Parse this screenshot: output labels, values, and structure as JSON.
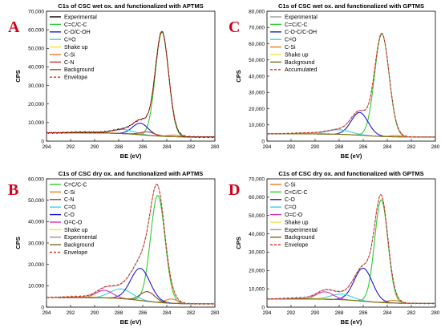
{
  "chart_data": [
    {
      "panel_letter": "A",
      "type": "line",
      "title": "C1s of CSC wet ox. and functionalized with APTMS",
      "xlabel": "BE (eV)",
      "ylabel": "CPS",
      "xlim": [
        294,
        280
      ],
      "xreverse": true,
      "ylim": [
        0,
        70000
      ],
      "xticks": [
        294,
        292,
        290,
        288,
        286,
        284,
        282,
        280
      ],
      "yticks": [
        0,
        10000,
        20000,
        30000,
        40000,
        50000,
        60000,
        70000
      ],
      "ytick_labels": [
        "0",
        "10,000",
        "20,000",
        "30,000",
        "40,000",
        "50,000",
        "60,000",
        "70,000"
      ],
      "legend_position": "top-left",
      "background": {
        "start": 4500,
        "end": 2200
      },
      "peaks": [
        {
          "name": "C=C/C-C",
          "center": 284.4,
          "height": 56000,
          "width": 0.55,
          "color": "#2ecc2e"
        },
        {
          "name": "C-O/C-OH",
          "center": 286.2,
          "height": 6200,
          "width": 0.65,
          "color": "#1a1ad6"
        },
        {
          "name": "C=O",
          "center": 287.6,
          "height": 2200,
          "width": 0.9,
          "color": "#2fd4e8"
        },
        {
          "name": "Shake up",
          "center": 290.8,
          "height": 400,
          "width": 1.2,
          "color": "#f2e23a"
        },
        {
          "name": "C-Si",
          "center": 283.4,
          "height": 900,
          "width": 0.5,
          "color": "#e87d1e"
        },
        {
          "name": "C-N",
          "center": 285.6,
          "height": 1800,
          "width": 0.6,
          "color": "#c0392b"
        }
      ],
      "legend": [
        {
          "label": "Experimental",
          "color": "#000000",
          "dash": false
        },
        {
          "label": "C=C/C-C",
          "color": "#2ecc2e",
          "dash": false
        },
        {
          "label": "C-O/C-OH",
          "color": "#1a1ad6",
          "dash": false
        },
        {
          "label": "C=O",
          "color": "#2fd4e8",
          "dash": false
        },
        {
          "label": "Shake up",
          "color": "#f2e23a",
          "dash": false
        },
        {
          "label": "C-Si",
          "color": "#e87d1e",
          "dash": false
        },
        {
          "label": "C-N",
          "color": "#c0392b",
          "dash": false
        },
        {
          "label": "Background",
          "color": "#7a6a1e",
          "dash": false
        },
        {
          "label": "Envelope",
          "color": "#e8231e",
          "dash": true
        }
      ]
    },
    {
      "panel_letter": "C",
      "type": "line",
      "title": "C1s of CSC wet ox. and functionalized with GPTMS",
      "xlabel": "BE (eV)",
      "ylabel": "CPS",
      "xlim": [
        294,
        280
      ],
      "xreverse": true,
      "ylim": [
        0,
        80000
      ],
      "xticks": [
        294,
        292,
        290,
        288,
        286,
        284,
        282,
        280
      ],
      "yticks": [
        0,
        10000,
        20000,
        30000,
        40000,
        50000,
        60000,
        70000,
        80000
      ],
      "ytick_labels": [
        "0",
        "10,000",
        "20,000",
        "30,000",
        "40,000",
        "50,000",
        "60,000",
        "70,000",
        "80,000"
      ],
      "legend_position": "top-left",
      "background": {
        "start": 4500,
        "end": 2500
      },
      "peaks": [
        {
          "name": "C=C/C-C",
          "center": 284.45,
          "height": 63000,
          "width": 0.6,
          "color": "#2ecc2e"
        },
        {
          "name": "C-O-C/C-OH",
          "center": 286.3,
          "height": 14000,
          "width": 0.7,
          "color": "#1a1ad6"
        },
        {
          "name": "C=O",
          "center": 288.0,
          "height": 2800,
          "width": 1.0,
          "color": "#2fd4e8"
        },
        {
          "name": "C-Si",
          "center": 283.3,
          "height": 800,
          "width": 0.5,
          "color": "#e87d1e"
        },
        {
          "name": "Shake up",
          "center": 290.6,
          "height": 600,
          "width": 1.2,
          "color": "#f2e23a"
        }
      ],
      "legend": [
        {
          "label": "Experimental",
          "color": "#9a9a9a",
          "dash": false
        },
        {
          "label": "C=C/C-C",
          "color": "#2ecc2e",
          "dash": false
        },
        {
          "label": "C-O-C/C-OH",
          "color": "#1a1ad6",
          "dash": false
        },
        {
          "label": "C=O",
          "color": "#2fd4e8",
          "dash": false
        },
        {
          "label": "C-Si",
          "color": "#e87d1e",
          "dash": false
        },
        {
          "label": "Shake up",
          "color": "#f2e23a",
          "dash": false
        },
        {
          "label": "Background",
          "color": "#7a6a1e",
          "dash": false
        },
        {
          "label": "Accumulated",
          "color": "#e8231e",
          "dash": true
        }
      ]
    },
    {
      "panel_letter": "B",
      "type": "line",
      "title": "C1s of CSC dry ox. and functionalized with APTMS",
      "xlabel": "BE (eV)",
      "ylabel": "CPS",
      "xlim": [
        294,
        280
      ],
      "xreverse": true,
      "ylim": [
        0,
        60000
      ],
      "xticks": [
        294,
        292,
        290,
        288,
        286,
        284,
        282,
        280
      ],
      "yticks": [
        0,
        10000,
        20000,
        30000,
        40000,
        50000,
        60000
      ],
      "ytick_labels": [
        "0",
        "10,000",
        "20,000",
        "30,000",
        "40,000",
        "50,000",
        "60,000"
      ],
      "legend_position": "top-left",
      "background": {
        "start": 4500,
        "end": 1500
      },
      "peaks": [
        {
          "name": "C=C/C-C",
          "center": 284.75,
          "height": 50000,
          "width": 0.6,
          "color": "#2ecc2e"
        },
        {
          "name": "C-Si",
          "center": 283.6,
          "height": 2000,
          "width": 0.5,
          "color": "#e87d1e"
        },
        {
          "name": "C-N",
          "center": 285.6,
          "height": 4500,
          "width": 0.6,
          "color": "#8a4a1e"
        },
        {
          "name": "C=O",
          "center": 287.8,
          "height": 4500,
          "width": 0.9,
          "color": "#2fd4e8"
        },
        {
          "name": "C-O",
          "center": 286.2,
          "height": 15000,
          "width": 0.8,
          "color": "#1a1ad6"
        },
        {
          "name": "O=C-O",
          "center": 289.2,
          "height": 3500,
          "width": 0.7,
          "color": "#d62fb4"
        },
        {
          "name": "Shake up",
          "center": 291.2,
          "height": 500,
          "width": 1.2,
          "color": "#f2e23a"
        }
      ],
      "legend": [
        {
          "label": "C=C/C-C",
          "color": "#2ecc2e",
          "dash": false
        },
        {
          "label": "C-Si",
          "color": "#e87d1e",
          "dash": false
        },
        {
          "label": "C-N",
          "color": "#8a4a1e",
          "dash": false
        },
        {
          "label": "C=O",
          "color": "#2fd4e8",
          "dash": false
        },
        {
          "label": "C-O",
          "color": "#1a1ad6",
          "dash": false
        },
        {
          "label": "O=C-O",
          "color": "#d62fb4",
          "dash": false
        },
        {
          "label": "Shake up",
          "color": "#f2e23a",
          "dash": false
        },
        {
          "label": "Experimental",
          "color": "#9a9a9a",
          "dash": false
        },
        {
          "label": "Background",
          "color": "#7a6a1e",
          "dash": false
        },
        {
          "label": "Envelope",
          "color": "#e8231e",
          "dash": true
        }
      ]
    },
    {
      "panel_letter": "D",
      "type": "line",
      "title": "C1s of CSC dry ox. and functionalized with GPTMS",
      "xlabel": "BE (eV)",
      "ylabel": "CPS",
      "xlim": [
        294,
        280
      ],
      "xreverse": true,
      "ylim": [
        0,
        70000
      ],
      "xticks": [
        294,
        292,
        290,
        288,
        286,
        284,
        282,
        280
      ],
      "yticks": [
        0,
        10000,
        20000,
        30000,
        40000,
        50000,
        60000,
        70000
      ],
      "ytick_labels": [
        "0",
        "10,000",
        "20,000",
        "30,000",
        "40,000",
        "50,000",
        "60,000",
        "70,000"
      ],
      "legend_position": "top-left",
      "background": {
        "start": 4500,
        "end": 2000
      },
      "peaks": [
        {
          "name": "C-Si",
          "center": 283.5,
          "height": 1500,
          "width": 0.5,
          "color": "#e87d1e"
        },
        {
          "name": "C=C/C-C",
          "center": 284.5,
          "height": 56000,
          "width": 0.55,
          "color": "#2ecc2e"
        },
        {
          "name": "C-O",
          "center": 286.0,
          "height": 18000,
          "width": 0.75,
          "color": "#1a1ad6"
        },
        {
          "name": "C=O",
          "center": 287.8,
          "height": 3000,
          "width": 0.9,
          "color": "#2fd4e8"
        },
        {
          "name": "O=C-O",
          "center": 289.2,
          "height": 4000,
          "width": 0.7,
          "color": "#d62fb4"
        },
        {
          "name": "Shake up",
          "center": 291.0,
          "height": 600,
          "width": 1.2,
          "color": "#f2e23a"
        }
      ],
      "legend": [
        {
          "label": "C-Si",
          "color": "#e87d1e",
          "dash": false
        },
        {
          "label": "C=C/C-C",
          "color": "#2ecc2e",
          "dash": false
        },
        {
          "label": "C-O",
          "color": "#1a1ad6",
          "dash": false
        },
        {
          "label": "C=O",
          "color": "#2fd4e8",
          "dash": false
        },
        {
          "label": "O=C-O",
          "color": "#d62fb4",
          "dash": false
        },
        {
          "label": "Shake up",
          "color": "#f2e23a",
          "dash": false
        },
        {
          "label": "Experimental",
          "color": "#9a9a9a",
          "dash": false
        },
        {
          "label": "Background",
          "color": "#7a6a1e",
          "dash": false
        },
        {
          "label": "Envelope",
          "color": "#e8231e",
          "dash": true
        }
      ]
    }
  ]
}
